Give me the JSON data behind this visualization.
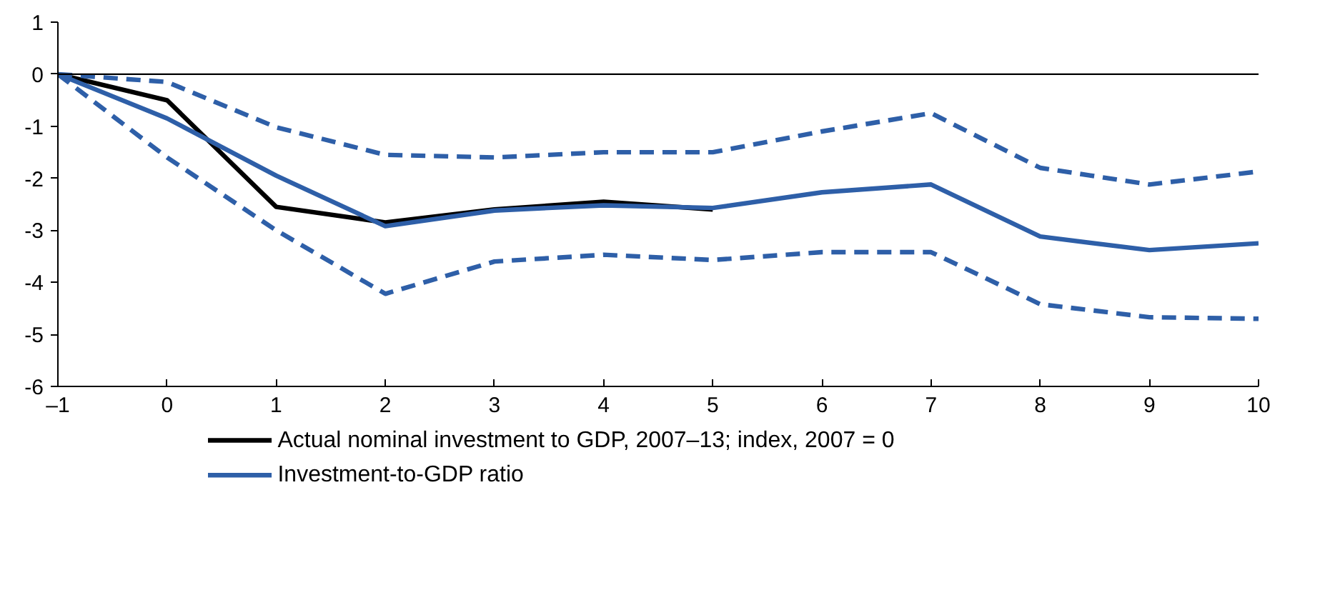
{
  "chart_data": {
    "type": "line",
    "x": [
      -1,
      0,
      1,
      2,
      3,
      4,
      5,
      6,
      7,
      8,
      9,
      10
    ],
    "series": [
      {
        "name": "Actual nominal investment to GDP, 2007–13; index, 2007 = 0",
        "color": "#000000",
        "values": [
          0,
          -0.5,
          -2.55,
          -2.85,
          -2.6,
          -2.45,
          -2.6,
          null,
          null,
          null,
          null,
          null
        ]
      },
      {
        "color": "#2e5fa8",
        "line_style": "dashed",
        "values": [
          0,
          -0.15,
          -1.02,
          -1.55,
          -1.6,
          -1.5,
          -1.5,
          -1.1,
          -0.75,
          -1.8,
          -2.12,
          -1.87
        ]
      },
      {
        "color": "#2e5fa8",
        "line_style": "dashed",
        "values": [
          0,
          -1.6,
          -3.0,
          -4.22,
          -3.6,
          -3.47,
          -3.57,
          -3.42,
          -3.42,
          -4.42,
          -4.67,
          -4.7
        ]
      },
      {
        "name": "Investment-to-GDP ratio",
        "color": "#2e5fa8",
        "values": [
          0,
          -0.85,
          -1.95,
          -2.92,
          -2.62,
          -2.52,
          -2.57,
          -2.27,
          -2.12,
          -3.12,
          -3.38,
          -3.25
        ]
      }
    ],
    "xlim": [
      -1,
      10
    ],
    "xticks": [
      {
        "value": -1,
        "label": "–1"
      },
      0,
      1,
      2,
      3,
      4,
      5,
      6,
      7,
      8,
      9,
      10
    ],
    "ylim": [
      -6,
      1
    ],
    "yticks": [
      -6,
      -5,
      -4,
      -3,
      -2,
      -1,
      0,
      1
    ],
    "ref_lines": [
      {
        "axis": "y",
        "value": 0,
        "color": "#000000"
      }
    ],
    "grid": false,
    "legend": "bottom",
    "line_style": "solid",
    "marker": "none"
  }
}
